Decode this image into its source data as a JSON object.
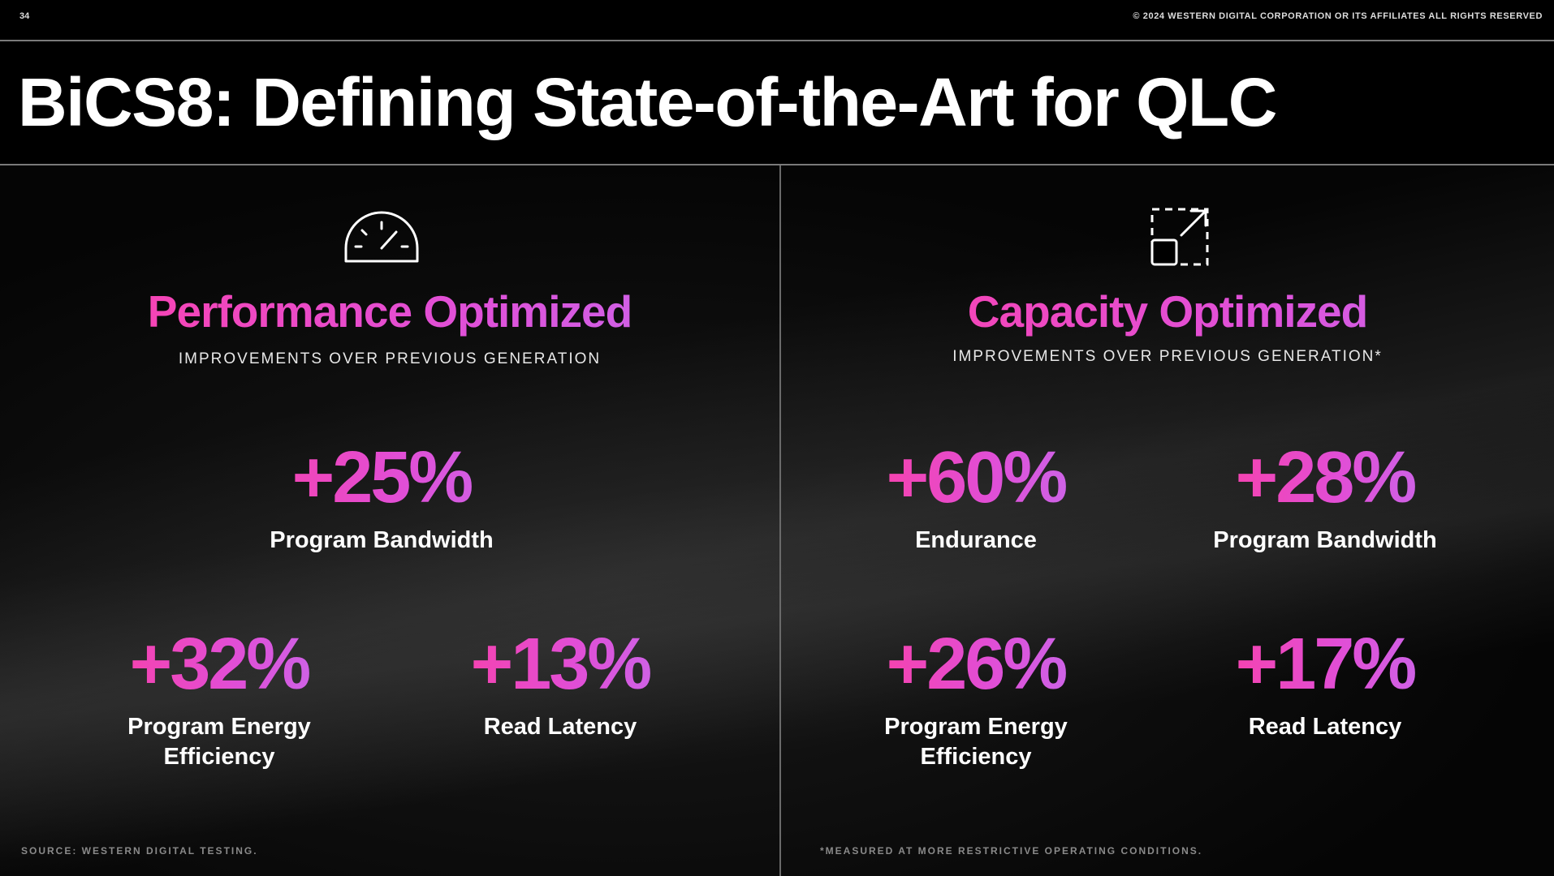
{
  "header": {
    "slide_number": "34",
    "copyright": "© 2024 WESTERN DIGITAL CORPORATION OR ITS AFFILIATES  ALL RIGHTS RESERVED"
  },
  "title": "BiCS8: Defining State-of-the-Art for QLC",
  "panels": [
    {
      "icon": "speedometer-icon",
      "heading": "Performance Optimized",
      "subheading": "IMPROVEMENTS OVER PREVIOUS GENERATION",
      "stats": [
        {
          "value": "+25%",
          "label": "Program Bandwidth"
        },
        {
          "value": "+32%",
          "label_line1": "Program Energy",
          "label_line2": "Efficiency"
        },
        {
          "value": "+13%",
          "label": "Read Latency"
        }
      ],
      "footnote": "SOURCE: WESTERN DIGITAL TESTING."
    },
    {
      "icon": "expand-capacity-icon",
      "heading": "Capacity Optimized",
      "subheading": "IMPROVEMENTS OVER PREVIOUS GENERATION*",
      "stats": [
        {
          "value": "+60%",
          "label": "Endurance"
        },
        {
          "value": "+28%",
          "label": "Program Bandwidth"
        },
        {
          "value": "+26%",
          "label_line1": "Program Energy",
          "label_line2": "Efficiency"
        },
        {
          "value": "+17%",
          "label": "Read Latency"
        }
      ],
      "footnote": "*MEASURED AT MORE RESTRICTIVE OPERATING CONDITIONS."
    }
  ],
  "colors": {
    "accent_pink": "#ff3d9c",
    "accent_purple": "#c071f2",
    "background": "#000000"
  }
}
